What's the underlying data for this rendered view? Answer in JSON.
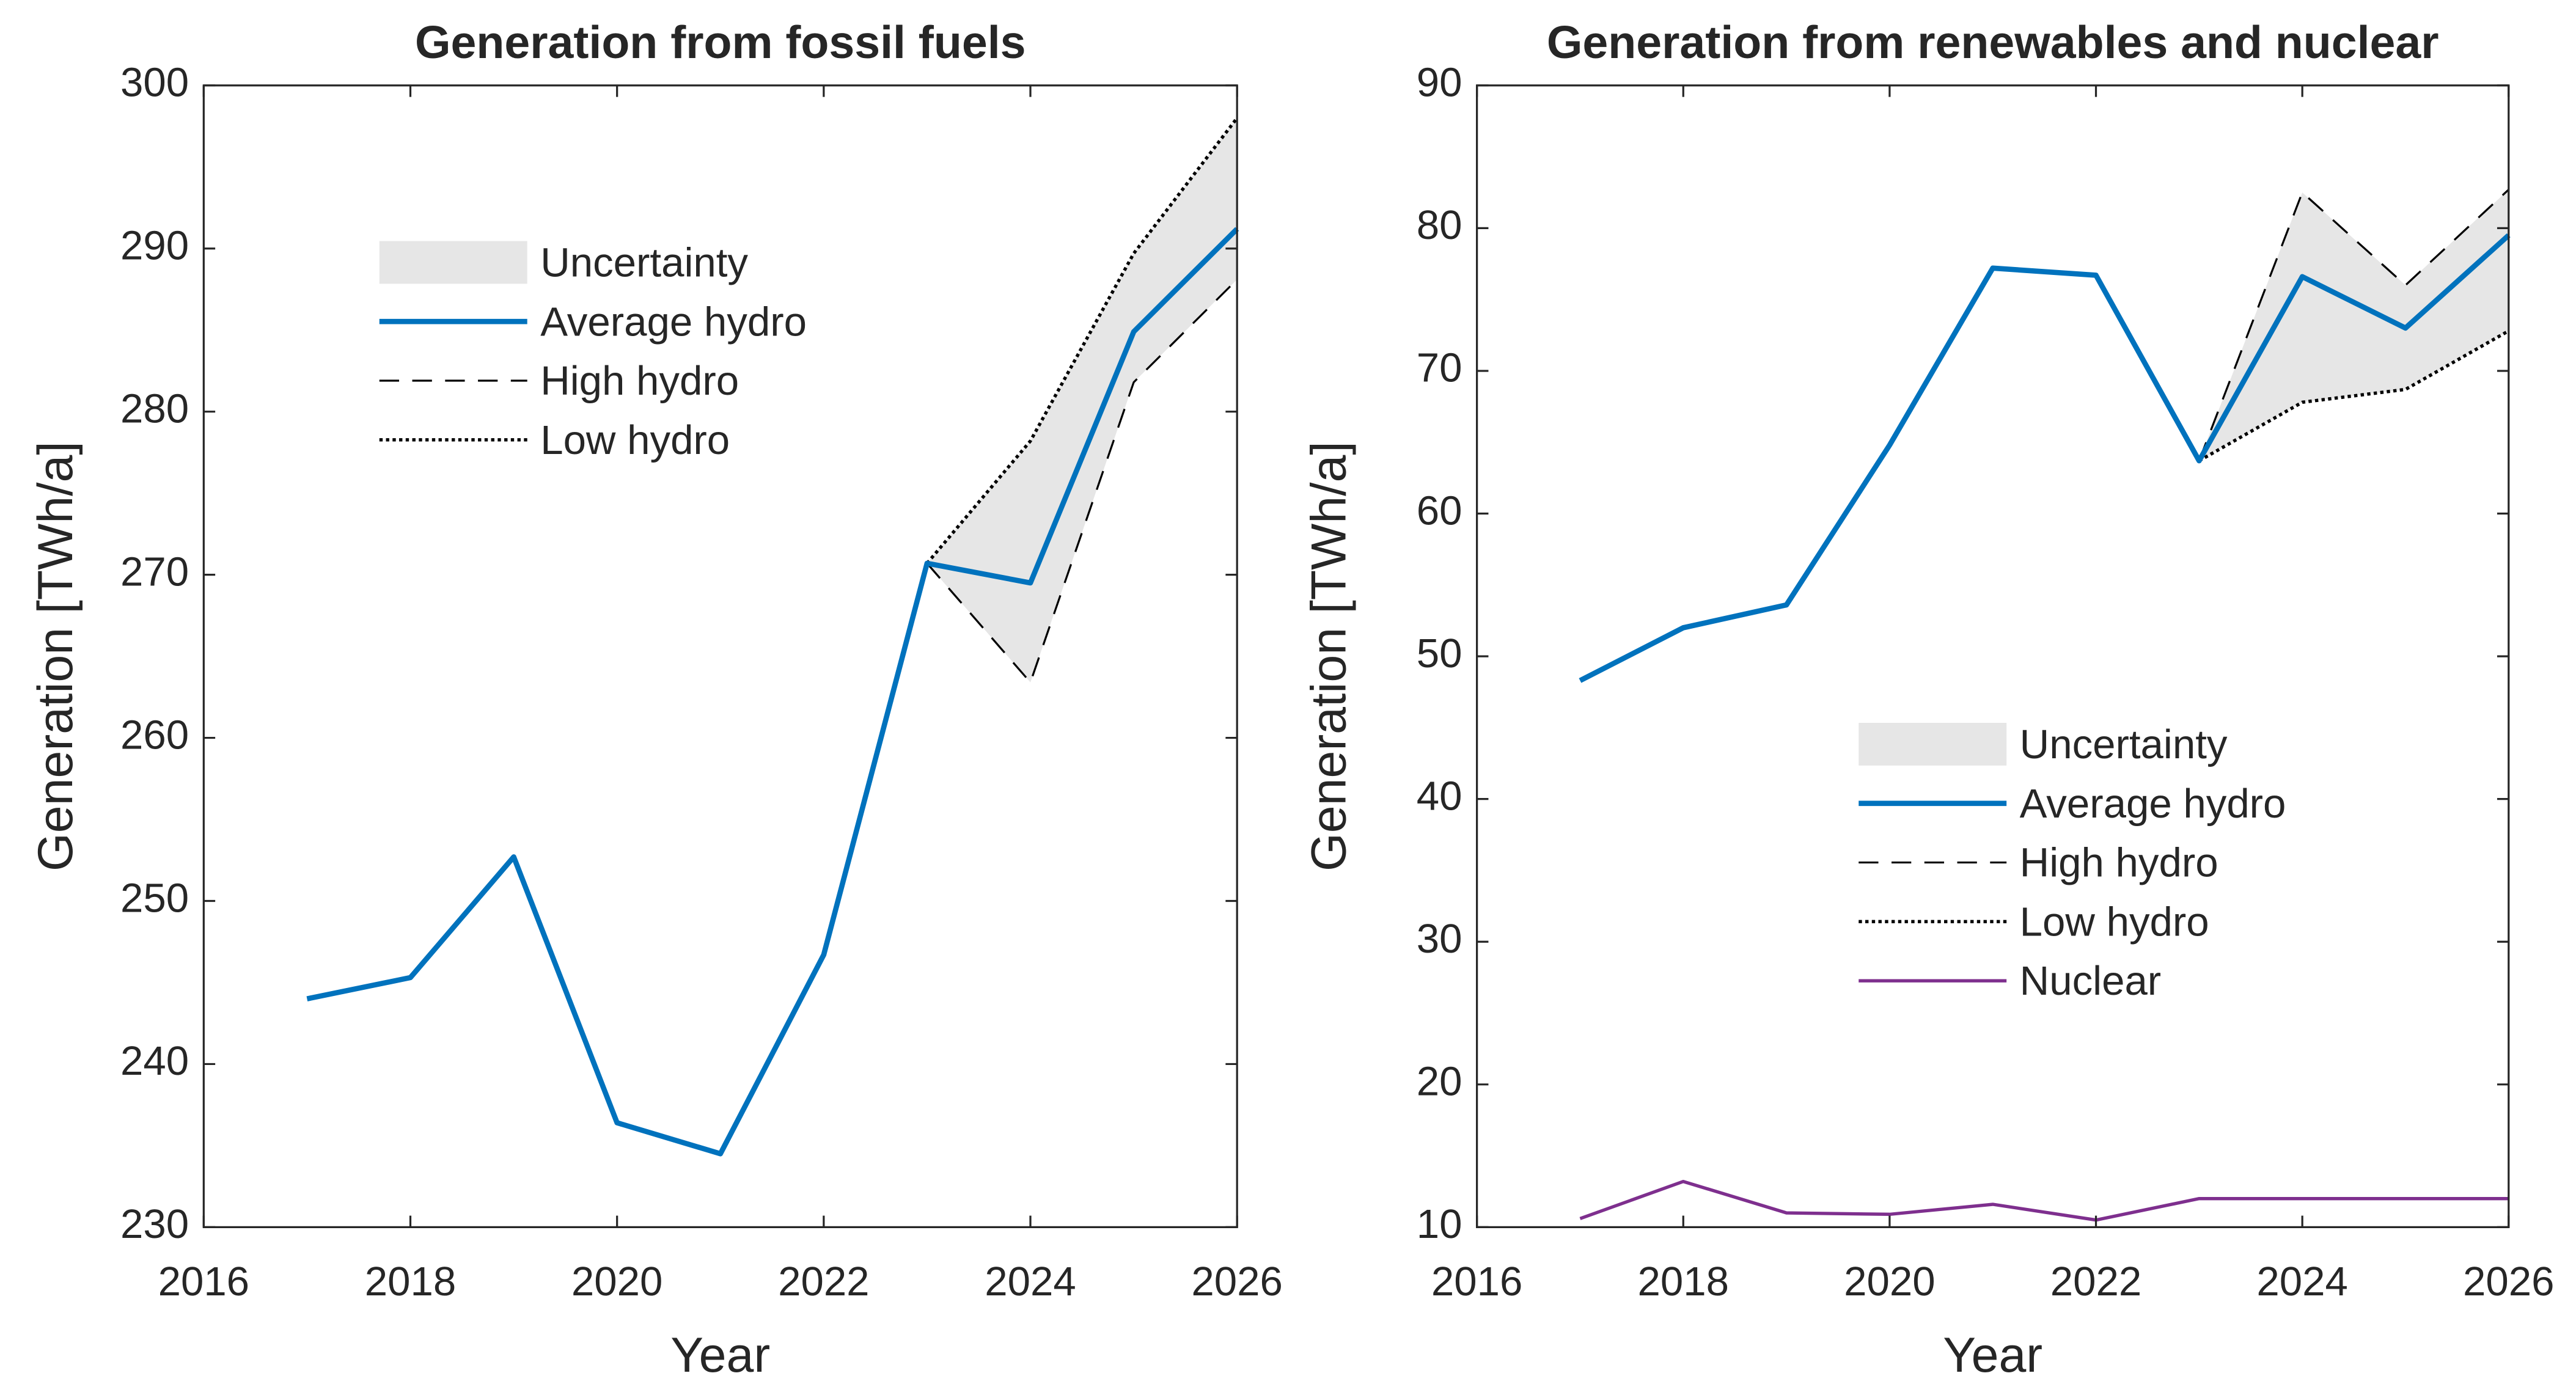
{
  "chart_data": [
    {
      "type": "line",
      "title": "Generation from fossil fuels",
      "xlabel": "Year",
      "ylabel": "Generation [TWh/a]",
      "x": [
        2017,
        2018,
        2019,
        2020,
        2021,
        2022,
        2023,
        2024,
        2025,
        2026
      ],
      "xlim": [
        2016,
        2026
      ],
      "xticks": [
        2016,
        2018,
        2020,
        2022,
        2024,
        2026
      ],
      "ylim": [
        230,
        300
      ],
      "yticks": [
        230,
        240,
        250,
        260,
        270,
        280,
        290,
        300
      ],
      "legend": "upper left",
      "band": {
        "name": "Uncertainty",
        "color": "#e6e6e6"
      },
      "series": [
        {
          "name": "Average hydro",
          "color": "#0072bd",
          "style": "solid",
          "values": [
            244.0,
            245.3,
            252.7,
            236.4,
            234.5,
            246.7,
            270.7,
            269.5,
            284.9,
            291.2
          ]
        },
        {
          "name": "High hydro",
          "color": "#000000",
          "style": "dashed",
          "values": [
            null,
            null,
            null,
            null,
            null,
            null,
            270.7,
            263.4,
            281.8,
            288.1
          ]
        },
        {
          "name": "Low hydro",
          "color": "#000000",
          "style": "dotted",
          "values": [
            null,
            null,
            null,
            null,
            null,
            null,
            270.7,
            278.2,
            289.7,
            298.0
          ]
        }
      ]
    },
    {
      "type": "line",
      "title": "Generation from renewables and nuclear",
      "xlabel": "Year",
      "ylabel": "Generation [TWh/a]",
      "x": [
        2017,
        2018,
        2019,
        2020,
        2021,
        2022,
        2023,
        2024,
        2025,
        2026
      ],
      "xlim": [
        2016,
        2026
      ],
      "xticks": [
        2016,
        2018,
        2020,
        2022,
        2024,
        2026
      ],
      "ylim": [
        10,
        90
      ],
      "yticks": [
        10,
        20,
        30,
        40,
        50,
        60,
        70,
        80,
        90
      ],
      "legend": "center",
      "band": {
        "name": "Uncertainty",
        "color": "#e6e6e6"
      },
      "series": [
        {
          "name": "Average hydro",
          "color": "#0072bd",
          "style": "solid",
          "values": [
            48.3,
            52.0,
            53.6,
            64.8,
            77.2,
            76.7,
            63.7,
            76.6,
            73.0,
            79.5
          ]
        },
        {
          "name": "High hydro",
          "color": "#000000",
          "style": "dashed",
          "values": [
            null,
            null,
            null,
            null,
            null,
            null,
            63.7,
            82.5,
            76.0,
            82.7
          ]
        },
        {
          "name": "Low hydro",
          "color": "#000000",
          "style": "dotted",
          "values": [
            null,
            null,
            null,
            null,
            null,
            null,
            63.7,
            67.8,
            68.7,
            72.8
          ]
        },
        {
          "name": "Nuclear",
          "color": "#7e2f8e",
          "style": "thin",
          "values": [
            10.6,
            13.2,
            11.0,
            10.9,
            11.6,
            10.5,
            12.0,
            12.0,
            12.0,
            12.0
          ]
        }
      ]
    }
  ]
}
